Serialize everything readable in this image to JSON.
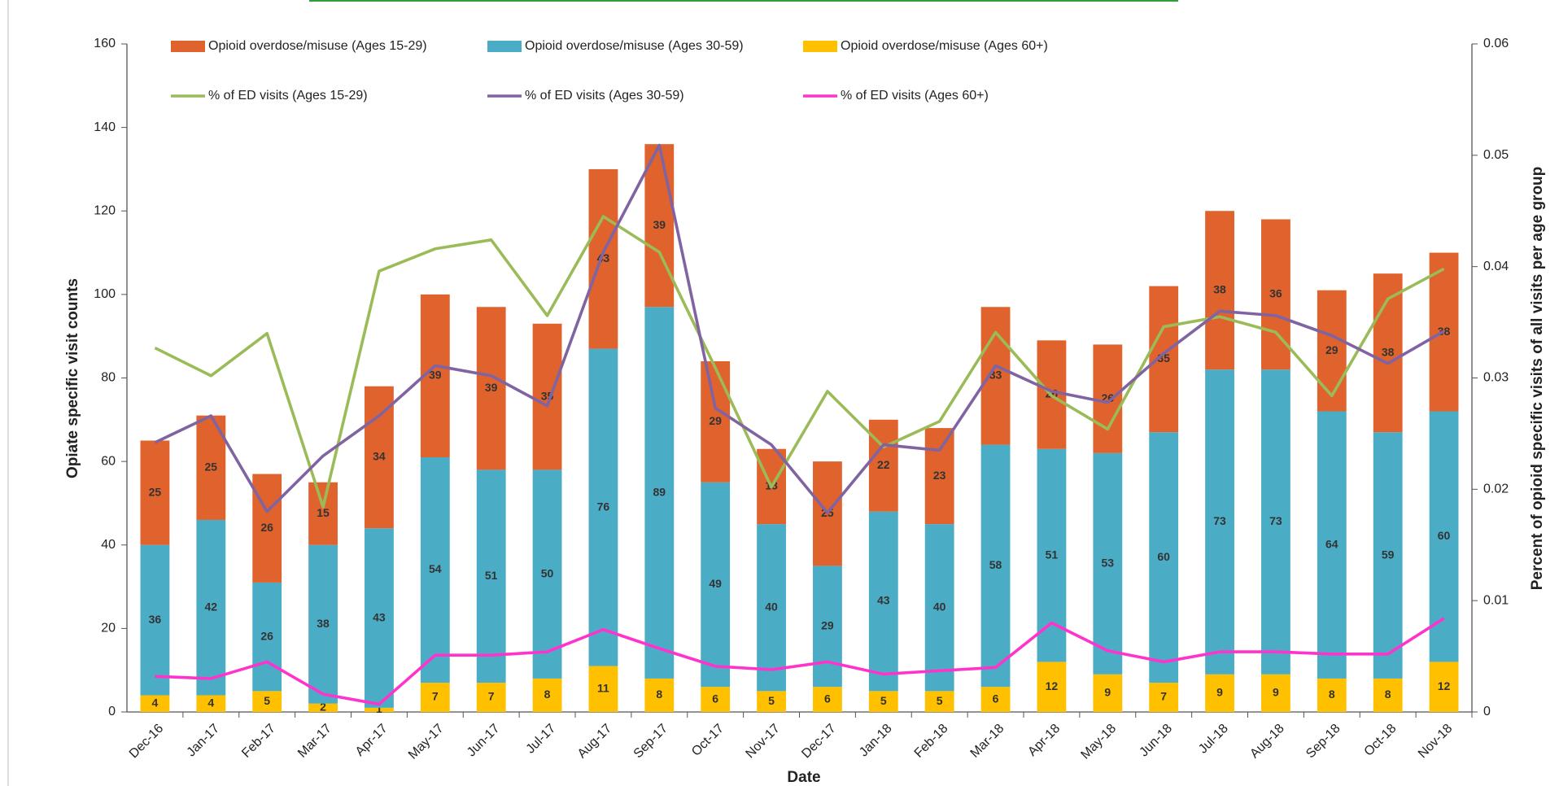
{
  "chart_data": {
    "type": "combo",
    "stacked": true,
    "x_label": "Date",
    "y_label": "Opiate specific visit counts",
    "y2_label": "Percent of opioid specific visits of all visits per age group",
    "categories": [
      "Dec-16",
      "Jan-17",
      "Feb-17",
      "Mar-17",
      "Apr-17",
      "May-17",
      "Jun-17",
      "Jul-17",
      "Aug-17",
      "Sep-17",
      "Oct-17",
      "Nov-17",
      "Dec-17",
      "Jan-18",
      "Feb-18",
      "Mar-18",
      "Apr-18",
      "May-18",
      "Jun-18",
      "Jul-18",
      "Aug-18",
      "Sep-18",
      "Oct-18",
      "Nov-18"
    ],
    "ylim": [
      0,
      160
    ],
    "yticks": [
      0,
      20,
      40,
      60,
      80,
      100,
      120,
      140,
      160
    ],
    "y2lim": [
      0,
      0.06
    ],
    "y2ticks": [
      0,
      0.01,
      0.02,
      0.03,
      0.04,
      0.05,
      0.06
    ],
    "series": [
      {
        "name": "Opioid overdose/misuse (Ages 15-29)",
        "type": "bar",
        "color": "#E0622D",
        "values": [
          25,
          25,
          26,
          15,
          34,
          39,
          39,
          35,
          43,
          39,
          29,
          18,
          25,
          22,
          23,
          33,
          26,
          26,
          35,
          38,
          36,
          29,
          38,
          38
        ]
      },
      {
        "name": "Opioid overdose/misuse (Ages 30-59)",
        "type": "bar",
        "color": "#4BACC6",
        "values": [
          36,
          42,
          26,
          38,
          43,
          54,
          51,
          50,
          76,
          89,
          49,
          40,
          29,
          43,
          40,
          58,
          51,
          53,
          60,
          73,
          73,
          64,
          59,
          60
        ]
      },
      {
        "name": "Opioid overdose/misuse (Ages 60+)",
        "type": "bar",
        "color": "#FFC000",
        "values": [
          4,
          4,
          5,
          2,
          1,
          7,
          7,
          8,
          11,
          8,
          6,
          5,
          6,
          5,
          5,
          6,
          12,
          9,
          7,
          9,
          9,
          8,
          8,
          12
        ]
      },
      {
        "name": "% of ED visits (Ages 15-29)",
        "type": "line",
        "axis": "y2",
        "color": "#9BBB59",
        "values": [
          0.0327,
          0.0302,
          0.034,
          0.0184,
          0.0396,
          0.0416,
          0.0424,
          0.0356,
          0.0445,
          0.0413,
          0.0309,
          0.0202,
          0.0288,
          0.0238,
          0.0261,
          0.0341,
          0.0284,
          0.0254,
          0.0346,
          0.0355,
          0.0341,
          0.0284,
          0.0371,
          0.0398
        ]
      },
      {
        "name": "% of ED visits (Ages 30-59)",
        "type": "line",
        "axis": "y2",
        "color": "#8064A2",
        "values": [
          0.0242,
          0.0266,
          0.018,
          0.023,
          0.0266,
          0.0311,
          0.0302,
          0.0275,
          0.0413,
          0.0509,
          0.0273,
          0.024,
          0.0179,
          0.024,
          0.0235,
          0.0311,
          0.0288,
          0.0278,
          0.0322,
          0.036,
          0.0356,
          0.0338,
          0.0313,
          0.0342
        ]
      },
      {
        "name": "% of ED visits (Ages 60+)",
        "type": "line",
        "axis": "y2",
        "color": "#FF33CC",
        "values": [
          0.0032,
          0.003,
          0.0045,
          0.0016,
          0.0007,
          0.0051,
          0.0051,
          0.0054,
          0.0074,
          0.0057,
          0.0041,
          0.0038,
          0.0045,
          0.0034,
          0.0037,
          0.004,
          0.008,
          0.0055,
          0.0045,
          0.0054,
          0.0054,
          0.0052,
          0.0052,
          0.0084
        ]
      }
    ]
  }
}
